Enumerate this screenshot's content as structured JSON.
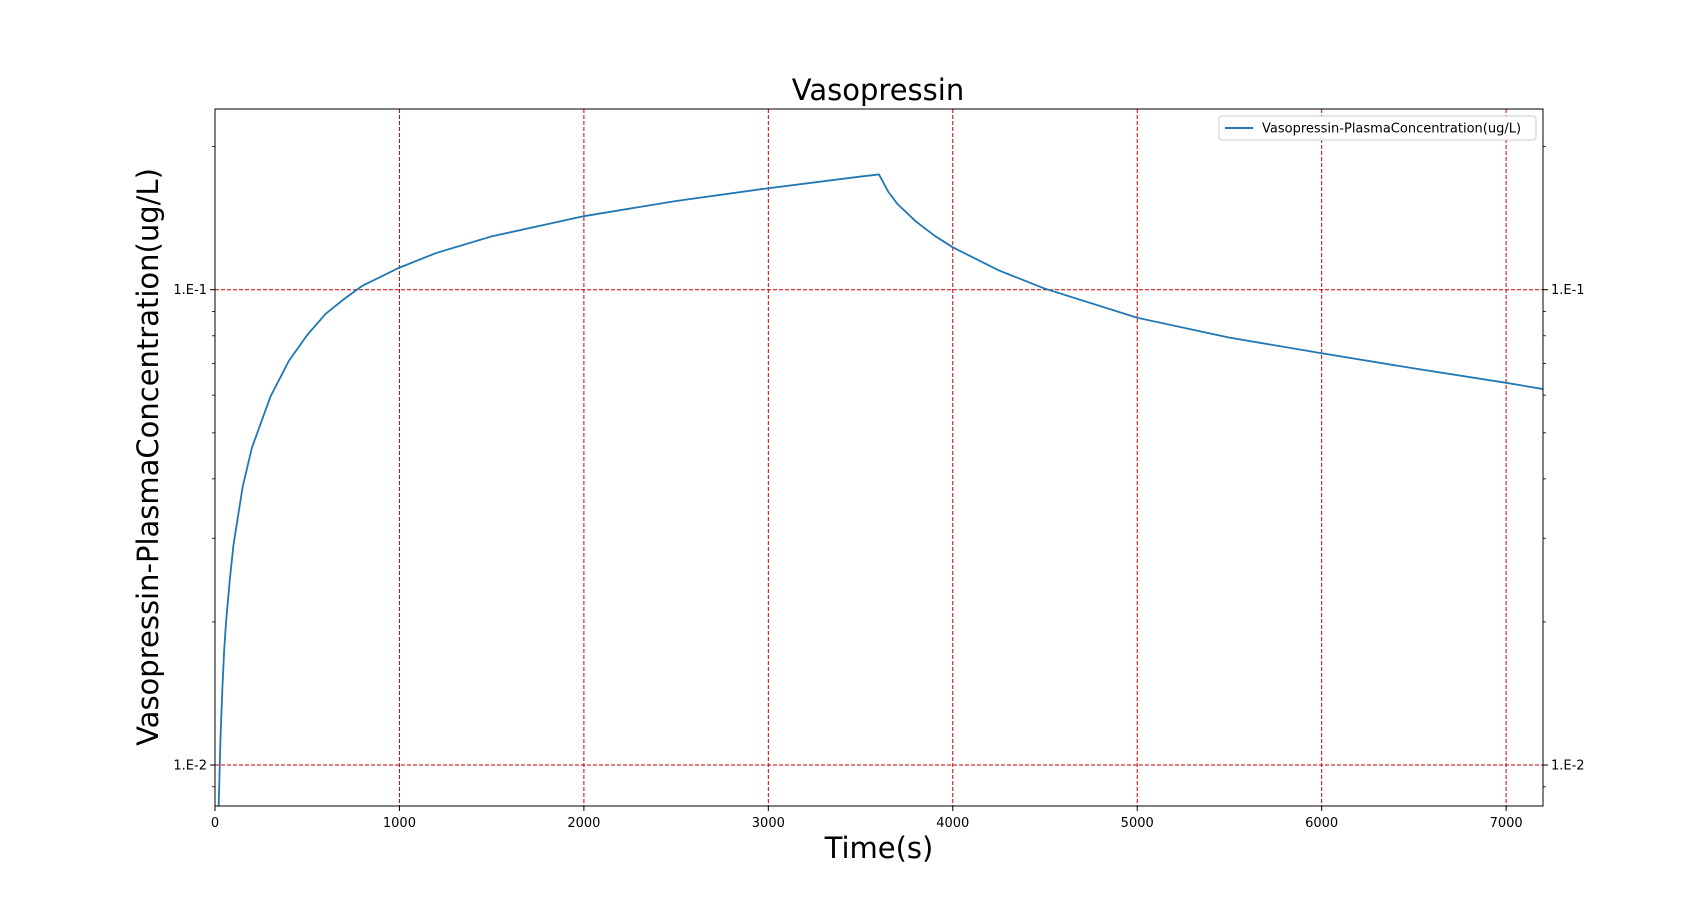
{
  "colors": {
    "line": "#1f77b4",
    "grid": "#cc0000",
    "axes": "#000000",
    "background": "#ffffff",
    "legend_border": "#cccccc"
  },
  "chart_data": {
    "type": "line",
    "title": "Vasopressin",
    "xlabel": "Time(s)",
    "ylabel": "Vasopressin-PlasmaConcentration(ug/L)",
    "xlim": [
      0,
      7200
    ],
    "ylim": [
      0.0082,
      0.24
    ],
    "y_scale": "log",
    "grid": true,
    "grid_style": "dashed",
    "legend": "top-right",
    "x_ticks": [
      0,
      1000,
      2000,
      3000,
      4000,
      5000,
      6000,
      7000
    ],
    "x_tick_labels": [
      "0",
      "1000",
      "2000",
      "3000",
      "4000",
      "5000",
      "6000",
      "7000"
    ],
    "y_ticks": [
      0.01,
      0.1
    ],
    "y_tick_labels": [
      "1.E-2",
      "1.E-1"
    ],
    "y_ticks_mirrored_right": true,
    "series": [
      {
        "name": "Vasopressin-PlasmaConcentration(ug/L)",
        "x": [
          20,
          30,
          40,
          50,
          60,
          80,
          100,
          150,
          200,
          300,
          400,
          500,
          600,
          700,
          800,
          1000,
          1200,
          1500,
          2000,
          2500,
          3000,
          3500,
          3600,
          3650,
          3700,
          3800,
          3900,
          4000,
          4250,
          4500,
          5000,
          5500,
          6000,
          6500,
          7000,
          7200
        ],
        "values": [
          0.0082,
          0.0115,
          0.0145,
          0.0175,
          0.02,
          0.0245,
          0.029,
          0.0385,
          0.0465,
          0.0595,
          0.0708,
          0.0803,
          0.089,
          0.0956,
          0.102,
          0.1113,
          0.1195,
          0.1295,
          0.1428,
          0.1537,
          0.1635,
          0.173,
          0.1748,
          0.1608,
          0.1515,
          0.1392,
          0.13,
          0.1228,
          0.1098,
          0.1005,
          0.0873,
          0.0793,
          0.0735,
          0.0683,
          0.0637,
          0.0618
        ]
      }
    ]
  }
}
